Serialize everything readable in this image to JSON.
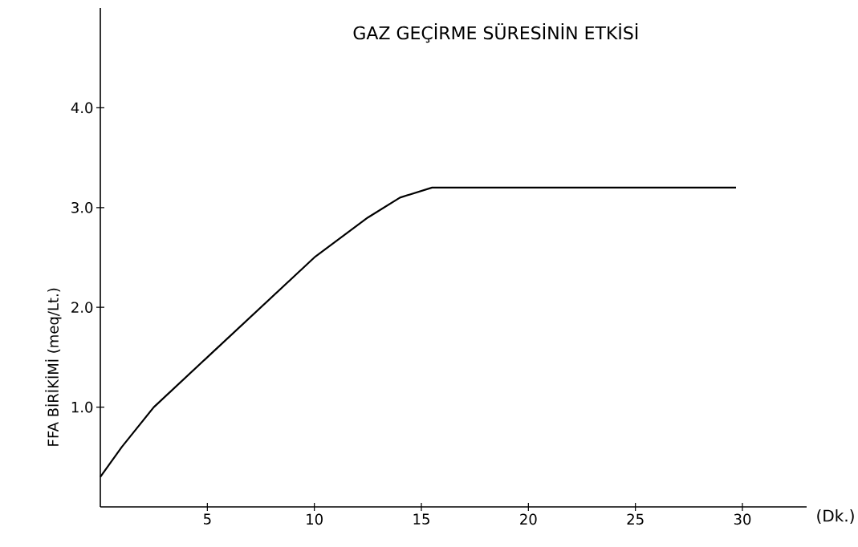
{
  "chart_data": {
    "type": "line",
    "title": "GAZ GEÇİRME SÜRESİNİN ETKİSİ",
    "xlabel": "(Dk.)",
    "ylabel": "FFA BİRİKİMİ (meq/Lt.)",
    "x": [
      0,
      1,
      2.5,
      5,
      7.5,
      10,
      12.5,
      14,
      15.5,
      20,
      25,
      29.7
    ],
    "values": [
      0.3,
      0.6,
      1.0,
      1.5,
      2.0,
      2.5,
      2.9,
      3.1,
      3.2,
      3.2,
      3.2,
      3.2
    ],
    "color": "#000000",
    "xlim": [
      0,
      33
    ],
    "ylim": [
      0,
      5
    ],
    "xticks": [
      5,
      10,
      15,
      20,
      25,
      30
    ],
    "yticks": [
      {
        "value": 1,
        "label": "1.0"
      },
      {
        "value": 2,
        "label": "2.0"
      },
      {
        "value": 3,
        "label": "3.0"
      },
      {
        "value": 4,
        "label": "4.0"
      }
    ]
  }
}
